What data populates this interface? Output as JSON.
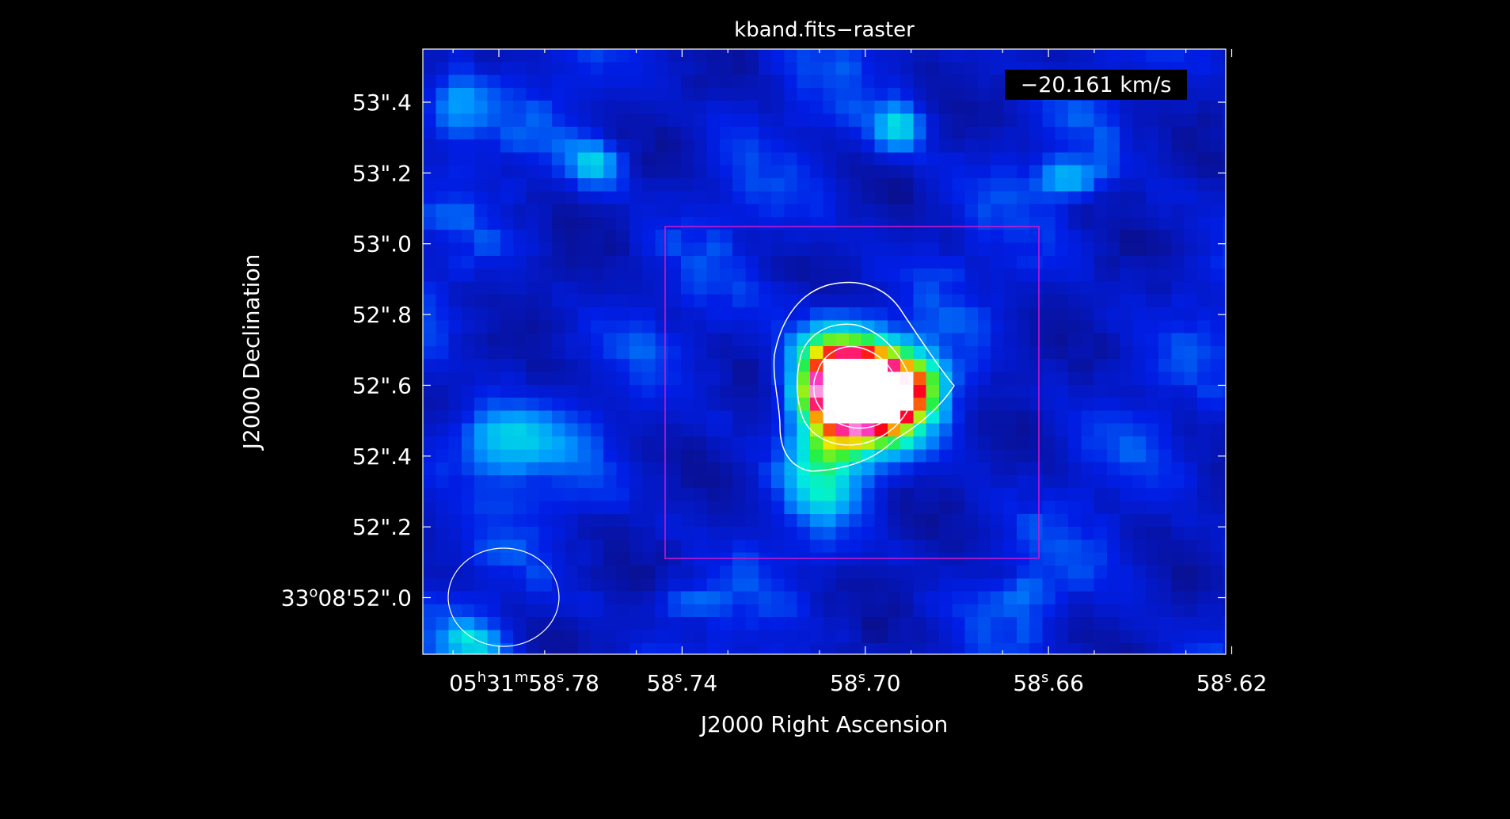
{
  "image": {
    "title": "kband.fits−raster",
    "velocity_label": "−20.161 km/s"
  },
  "axes": {
    "xlabel": "J2000 Right Ascension",
    "ylabel": "J2000 Declination",
    "x_ticks": [
      {
        "ra_s": 58.78,
        "h": "05",
        "m": "31",
        "s": "58",
        "frac": ".78",
        "full": true
      },
      {
        "ra_s": 58.74,
        "s": "58",
        "frac": ".74"
      },
      {
        "ra_s": 58.7,
        "s": "58",
        "frac": ".70"
      },
      {
        "ra_s": 58.66,
        "s": "58",
        "frac": ".66"
      },
      {
        "ra_s": 58.62,
        "s": "58",
        "frac": ".62"
      }
    ],
    "y_ticks": [
      {
        "dec_arcsec": 53.4,
        "label": "53\".4"
      },
      {
        "dec_arcsec": 53.2,
        "label": "53\".2"
      },
      {
        "dec_arcsec": 53.0,
        "label": "53\".0"
      },
      {
        "dec_arcsec": 52.8,
        "label": "52\".8"
      },
      {
        "dec_arcsec": 52.6,
        "label": "52\".6"
      },
      {
        "dec_arcsec": 52.4,
        "label": "52\".4"
      },
      {
        "dec_arcsec": 52.2,
        "label": "52\".2"
      },
      {
        "dec_arcsec": 52.0,
        "deg": "33",
        "dmin": "08",
        "label": "52\".0",
        "full": true
      }
    ],
    "x_range": [
      58.7966,
      58.6213
    ],
    "y_range": [
      51.84,
      53.55
    ]
  },
  "colors": {
    "background": "#000000",
    "frame": "#ffffff",
    "region_box": "#d01ad0",
    "contour": "#ffffff",
    "beam": "#ffffff"
  },
  "chart_data": {
    "type": "heatmap",
    "title": "kband.fits−raster",
    "xlabel": "J2000 Right Ascension",
    "ylabel": "J2000 Declination",
    "colormap": "rainbow",
    "grid": false,
    "source_peak": {
      "ra_s": 58.7,
      "dec_arcsec": 52.57
    },
    "contour_levels": 4,
    "region_box": {
      "ra_s_min": 58.676,
      "ra_s_max": 58.743,
      "dec_min": 52.11,
      "dec_max": 53.05
    },
    "beam": {
      "ra_s": 58.778,
      "dec_arcsec": 52.0
    }
  }
}
